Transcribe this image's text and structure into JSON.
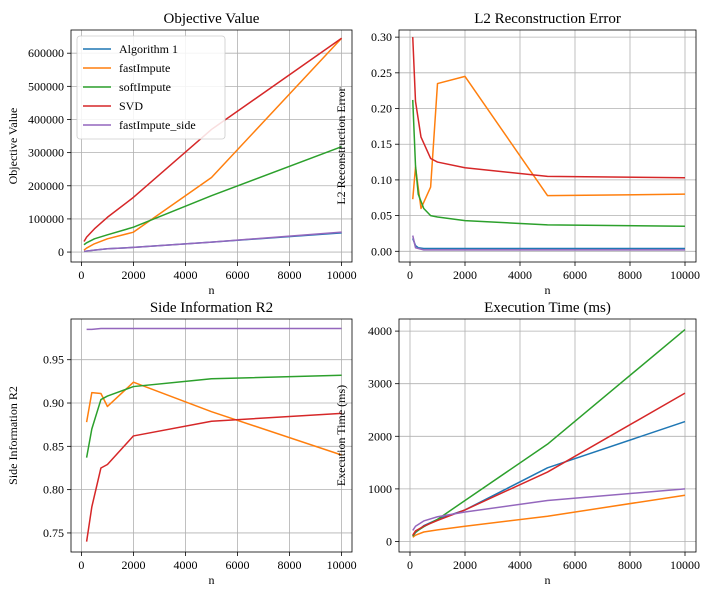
{
  "chart_data": [
    {
      "type": "line",
      "title": "Objective Value",
      "xlabel": "n",
      "ylabel": "Objective Value",
      "xlim": [
        -400,
        10400
      ],
      "ylim": [
        -30000,
        670000
      ],
      "xticks": [
        0,
        2000,
        4000,
        6000,
        8000,
        10000
      ],
      "xtick_labels": [
        "0",
        "2000",
        "4000",
        "6000",
        "8000",
        "10000"
      ],
      "yticks": [
        0,
        100000,
        200000,
        300000,
        400000,
        500000,
        600000
      ],
      "ytick_labels": [
        "0",
        "100000",
        "200000",
        "300000",
        "400000",
        "500000",
        "600000"
      ],
      "grid": true,
      "legend": "top-left",
      "series": [
        {
          "name": "Algorithm 1",
          "color": "#1f77b4",
          "x": [
            100,
            200,
            500,
            1000,
            2000,
            5000,
            10000
          ],
          "y": [
            2000,
            3000,
            6000,
            10000,
            14000,
            30000,
            58000
          ]
        },
        {
          "name": "fastImpute",
          "color": "#ff7f0e",
          "x": [
            100,
            200,
            500,
            1000,
            2000,
            5000,
            10000
          ],
          "y": [
            6000,
            12000,
            25000,
            40000,
            60000,
            225000,
            645000
          ]
        },
        {
          "name": "softImpute",
          "color": "#2ca02c",
          "x": [
            100,
            200,
            500,
            1000,
            2000,
            5000,
            10000
          ],
          "y": [
            22000,
            28000,
            40000,
            52000,
            75000,
            170000,
            318000
          ]
        },
        {
          "name": "SVD",
          "color": "#d62728",
          "x": [
            100,
            200,
            500,
            1000,
            2000,
            5000,
            10000
          ],
          "y": [
            32000,
            45000,
            70000,
            105000,
            165000,
            370000,
            645000
          ]
        },
        {
          "name": "fastImpute_side",
          "color": "#9467bd",
          "x": [
            100,
            200,
            500,
            1000,
            2000,
            5000,
            10000
          ],
          "y": [
            2000,
            3000,
            6000,
            10000,
            14000,
            30000,
            60000
          ]
        }
      ]
    },
    {
      "type": "line",
      "title": "L2 Reconstruction Error",
      "xlabel": "n",
      "ylabel": "L2 Reconstruction Error",
      "xlim": [
        -400,
        10400
      ],
      "ylim": [
        -0.015,
        0.31
      ],
      "xticks": [
        0,
        2000,
        4000,
        6000,
        8000,
        10000
      ],
      "xtick_labels": [
        "0",
        "2000",
        "4000",
        "6000",
        "8000",
        "10000"
      ],
      "yticks": [
        0.0,
        0.05,
        0.1,
        0.15,
        0.2,
        0.25,
        0.3
      ],
      "ytick_labels": [
        "0.00",
        "0.05",
        "0.10",
        "0.15",
        "0.20",
        "0.25",
        "0.30"
      ],
      "grid": true,
      "series": [
        {
          "name": "Algorithm 1",
          "color": "#1f77b4",
          "x": [
            100,
            200,
            300,
            500,
            1000,
            2000,
            5000,
            10000
          ],
          "y": [
            0.018,
            0.008,
            0.005,
            0.004,
            0.004,
            0.004,
            0.004,
            0.004
          ]
        },
        {
          "name": "fastImpute",
          "color": "#ff7f0e",
          "x": [
            100,
            200,
            400,
            750,
            1000,
            2000,
            5000,
            10000
          ],
          "y": [
            0.073,
            0.118,
            0.06,
            0.09,
            0.235,
            0.245,
            0.078,
            0.08
          ]
        },
        {
          "name": "softImpute",
          "color": "#2ca02c",
          "x": [
            100,
            200,
            300,
            500,
            750,
            1000,
            2000,
            5000,
            10000
          ],
          "y": [
            0.212,
            0.12,
            0.08,
            0.06,
            0.05,
            0.048,
            0.043,
            0.037,
            0.035
          ]
        },
        {
          "name": "SVD",
          "color": "#d62728",
          "x": [
            100,
            200,
            400,
            750,
            1000,
            2000,
            5000,
            10000
          ],
          "y": [
            0.3,
            0.21,
            0.16,
            0.13,
            0.125,
            0.117,
            0.105,
            0.103
          ]
        },
        {
          "name": "fastImpute_side",
          "color": "#9467bd",
          "x": [
            100,
            200,
            500,
            1000,
            2000,
            5000,
            10000
          ],
          "y": [
            0.022,
            0.005,
            0.002,
            0.002,
            0.002,
            0.002,
            0.002
          ]
        }
      ]
    },
    {
      "type": "line",
      "title": "Side Information R2",
      "xlabel": "n",
      "ylabel": "Side Information R2",
      "xlim": [
        -400,
        10400
      ],
      "ylim": [
        0.728,
        0.997
      ],
      "xticks": [
        0,
        2000,
        4000,
        6000,
        8000,
        10000
      ],
      "xtick_labels": [
        "0",
        "2000",
        "4000",
        "6000",
        "8000",
        "10000"
      ],
      "yticks": [
        0.75,
        0.8,
        0.85,
        0.9,
        0.95
      ],
      "ytick_labels": [
        "0.75",
        "0.80",
        "0.85",
        "0.90",
        "0.95"
      ],
      "grid": true,
      "series": [
        {
          "name": "fastImpute",
          "color": "#ff7f0e",
          "x": [
            200,
            400,
            750,
            1000,
            2000,
            5000,
            10000
          ],
          "y": [
            0.878,
            0.912,
            0.911,
            0.896,
            0.924,
            0.89,
            0.84
          ]
        },
        {
          "name": "softImpute",
          "color": "#2ca02c",
          "x": [
            200,
            400,
            750,
            1000,
            2000,
            5000,
            10000
          ],
          "y": [
            0.837,
            0.87,
            0.904,
            0.908,
            0.919,
            0.928,
            0.932
          ]
        },
        {
          "name": "SVD",
          "color": "#d62728",
          "x": [
            200,
            400,
            750,
            1000,
            2000,
            5000,
            10000
          ],
          "y": [
            0.74,
            0.78,
            0.825,
            0.829,
            0.862,
            0.879,
            0.888
          ]
        },
        {
          "name": "fastImpute_side",
          "color": "#9467bd",
          "x": [
            200,
            400,
            750,
            1000,
            2000,
            5000,
            10000
          ],
          "y": [
            0.985,
            0.985,
            0.986,
            0.986,
            0.986,
            0.986,
            0.986
          ]
        }
      ]
    },
    {
      "type": "line",
      "title": "Execution Time (ms)",
      "xlabel": "n",
      "ylabel": "Execution Time (ms)",
      "xlim": [
        -400,
        10400
      ],
      "ylim": [
        -200,
        4230
      ],
      "xticks": [
        0,
        2000,
        4000,
        6000,
        8000,
        10000
      ],
      "xtick_labels": [
        "0",
        "2000",
        "4000",
        "6000",
        "8000",
        "10000"
      ],
      "yticks": [
        0,
        1000,
        2000,
        3000,
        4000
      ],
      "ytick_labels": [
        "0",
        "1000",
        "2000",
        "3000",
        "4000"
      ],
      "grid": true,
      "series": [
        {
          "name": "Algorithm 1",
          "color": "#1f77b4",
          "x": [
            100,
            200,
            500,
            1000,
            2000,
            5000,
            10000
          ],
          "y": [
            100,
            170,
            300,
            420,
            600,
            1400,
            2280
          ]
        },
        {
          "name": "fastImpute",
          "color": "#ff7f0e",
          "x": [
            100,
            200,
            500,
            1000,
            2000,
            5000,
            10000
          ],
          "y": [
            80,
            120,
            180,
            220,
            290,
            480,
            880
          ]
        },
        {
          "name": "softImpute",
          "color": "#2ca02c",
          "x": [
            100,
            200,
            500,
            1000,
            2000,
            5000,
            10000
          ],
          "y": [
            100,
            180,
            280,
            420,
            780,
            1850,
            4030
          ]
        },
        {
          "name": "SVD",
          "color": "#d62728",
          "x": [
            100,
            200,
            500,
            1000,
            2000,
            5000,
            10000
          ],
          "y": [
            120,
            200,
            290,
            400,
            600,
            1320,
            2820
          ]
        },
        {
          "name": "fastImpute_side",
          "color": "#9467bd",
          "x": [
            100,
            200,
            500,
            1000,
            2000,
            5000,
            10000
          ],
          "y": [
            210,
            290,
            390,
            470,
            560,
            780,
            1000
          ]
        }
      ]
    }
  ]
}
